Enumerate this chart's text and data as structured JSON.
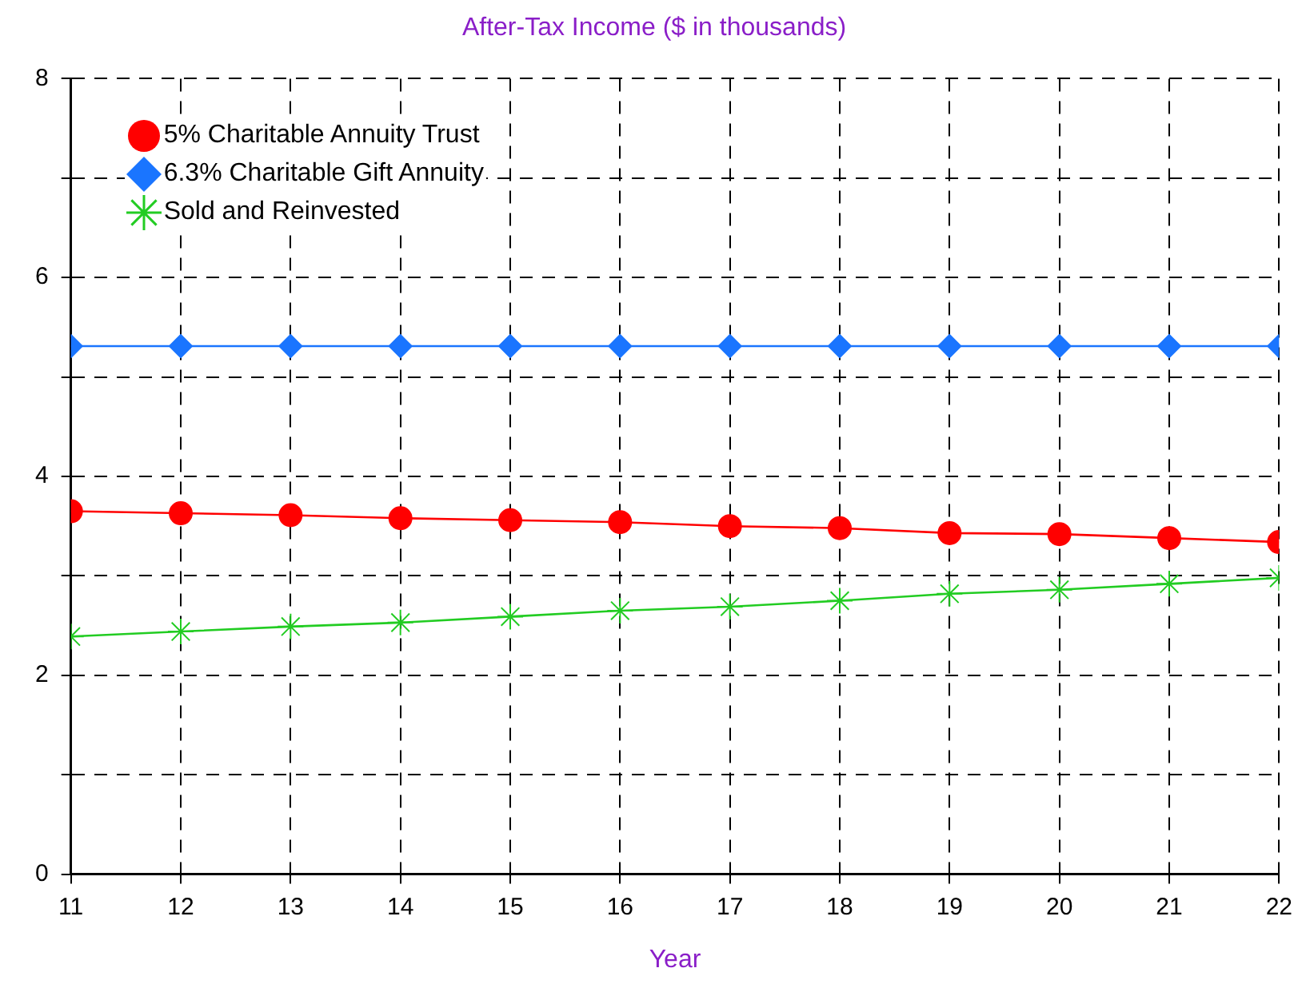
{
  "chart_data": {
    "type": "line",
    "title": "After-Tax Income ($ in thousands)",
    "xlabel": "Year",
    "x": [
      11,
      12,
      13,
      14,
      15,
      16,
      17,
      18,
      19,
      20,
      21,
      22
    ],
    "xlim": [
      11,
      22
    ],
    "xticks": [
      11,
      12,
      13,
      14,
      15,
      16,
      17,
      18,
      19,
      20,
      21,
      22
    ],
    "ylim": [
      0,
      8
    ],
    "yticks": [
      0,
      {
        "value": 1,
        "label": null
      },
      2,
      {
        "value": 3,
        "label": null
      },
      4,
      {
        "value": 5,
        "label": null
      },
      6,
      {
        "value": 7,
        "label": null
      },
      8
    ],
    "grid": true,
    "legend": "top left",
    "line_style": "solid",
    "series": [
      {
        "name": "5% Charitable Annuity Trust",
        "color": "#ff0000",
        "marker": "circle",
        "values": [
          3.65,
          3.63,
          3.61,
          3.58,
          3.56,
          3.54,
          3.5,
          3.48,
          3.43,
          3.42,
          3.38,
          3.34
        ]
      },
      {
        "name": "6.3% Charitable Gift Annuity",
        "color": "#1a75ff",
        "marker": "diamond",
        "values": [
          5.31,
          5.31,
          5.31,
          5.31,
          5.31,
          5.31,
          5.31,
          5.31,
          5.31,
          5.31,
          5.31,
          5.31
        ]
      },
      {
        "name": "Sold and Reinvested",
        "color": "#22cc22",
        "marker": "cross",
        "values": [
          2.39,
          2.44,
          2.49,
          2.53,
          2.59,
          2.65,
          2.69,
          2.75,
          2.82,
          2.86,
          2.92,
          2.98
        ]
      }
    ]
  }
}
